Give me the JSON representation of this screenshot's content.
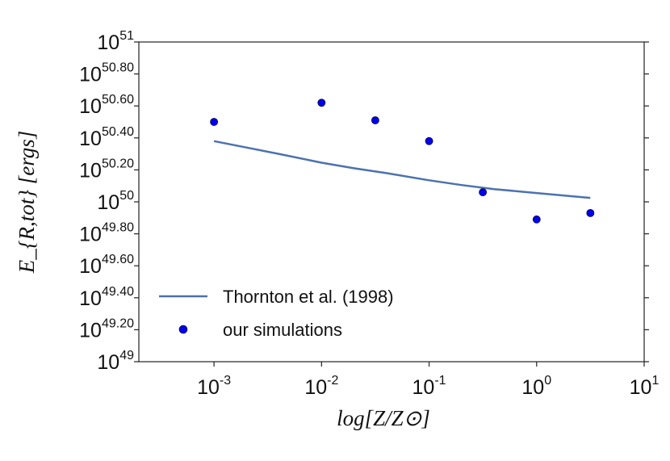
{
  "chart_data": {
    "type": "line+scatter",
    "xscale": "log",
    "xlim": [
      0.0002,
      10
    ],
    "ylim": [
      49,
      51
    ],
    "xlabel": "log[Z/Z⊙]",
    "ylabel": "E_{R,tot} [ergs]",
    "x_ticks": [
      {
        "value": 0.001,
        "base": "10",
        "exp": "-3"
      },
      {
        "value": 0.01,
        "base": "10",
        "exp": "-2"
      },
      {
        "value": 0.1,
        "base": "10",
        "exp": "-1"
      },
      {
        "value": 1,
        "base": "10",
        "exp": "0"
      },
      {
        "value": 10,
        "base": "10",
        "exp": "1"
      }
    ],
    "y_ticks": [
      {
        "value": 49.0,
        "base": "10",
        "exp": "49"
      },
      {
        "value": 49.2,
        "base": "10",
        "exp": "49.20"
      },
      {
        "value": 49.4,
        "base": "10",
        "exp": "49.40"
      },
      {
        "value": 49.6,
        "base": "10",
        "exp": "49.60"
      },
      {
        "value": 49.8,
        "base": "10",
        "exp": "49.80"
      },
      {
        "value": 50.0,
        "base": "10",
        "exp": "50"
      },
      {
        "value": 50.2,
        "base": "10",
        "exp": "50.20"
      },
      {
        "value": 50.4,
        "base": "10",
        "exp": "50.40"
      },
      {
        "value": 50.6,
        "base": "10",
        "exp": "50.60"
      },
      {
        "value": 50.8,
        "base": "10",
        "exp": "50.80"
      },
      {
        "value": 51.0,
        "base": "10",
        "exp": "51"
      }
    ],
    "series": [
      {
        "name": "Thornton et al. (1998)",
        "kind": "line",
        "color": "#4c72b0",
        "x": [
          0.001,
          0.002,
          0.004,
          0.01,
          0.02,
          0.04,
          0.1,
          0.2,
          0.4,
          1.0,
          2.0,
          3.16
        ],
        "y": [
          50.38,
          50.34,
          50.3,
          50.245,
          50.21,
          50.18,
          50.135,
          50.105,
          50.08,
          50.055,
          50.037,
          50.025
        ]
      },
      {
        "name": "our simulations",
        "kind": "scatter",
        "color": "#0000ee",
        "x": [
          0.001,
          0.01,
          0.0316,
          0.1,
          0.316,
          1.0,
          3.16
        ],
        "y": [
          50.5,
          50.62,
          50.51,
          50.38,
          50.06,
          49.89,
          49.93
        ]
      }
    ],
    "legend_position": "lower-left"
  }
}
